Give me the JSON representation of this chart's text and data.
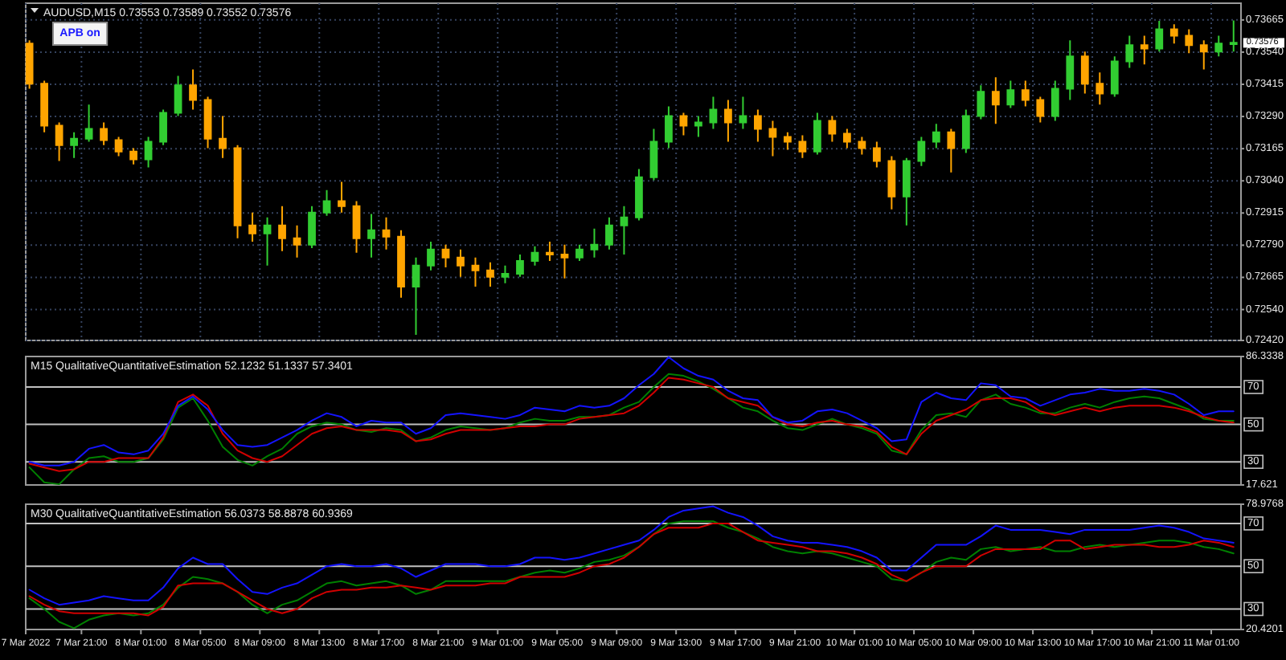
{
  "chart_data": [
    {
      "type": "candlestick",
      "title": "AUDUSD,M15 0.73553 0.73589 0.73552 0.73576",
      "annotations": [
        "APB on",
        {
          "text": "0.73576",
          "x": "2022-03-11T02:30",
          "y": 0.73576
        }
      ],
      "x": [
        "2022-03-07T17:30",
        "2022-03-07T18:30",
        "2022-03-07T19:30",
        "2022-03-07T20:30",
        "2022-03-07T21:30",
        "2022-03-07T22:30",
        "2022-03-07T23:30",
        "2022-03-08T00:30",
        "2022-03-08T01:30",
        "2022-03-08T02:30",
        "2022-03-08T03:30",
        "2022-03-08T04:30",
        "2022-03-08T05:30",
        "2022-03-08T06:30",
        "2022-03-08T07:30",
        "2022-03-08T08:30",
        "2022-03-08T09:30",
        "2022-03-08T10:30",
        "2022-03-08T11:30",
        "2022-03-08T12:30",
        "2022-03-08T13:30",
        "2022-03-08T14:30",
        "2022-03-08T15:30",
        "2022-03-08T16:30",
        "2022-03-08T17:30",
        "2022-03-08T18:30",
        "2022-03-08T19:30",
        "2022-03-08T20:30",
        "2022-03-08T21:30",
        "2022-03-08T22:30",
        "2022-03-08T23:30",
        "2022-03-09T00:30",
        "2022-03-09T01:30",
        "2022-03-09T02:30",
        "2022-03-09T03:30",
        "2022-03-09T04:30",
        "2022-03-09T05:30",
        "2022-03-09T06:30",
        "2022-03-09T07:30",
        "2022-03-09T08:30",
        "2022-03-09T09:30",
        "2022-03-09T10:30",
        "2022-03-09T11:30",
        "2022-03-09T12:30",
        "2022-03-09T13:30",
        "2022-03-09T14:30",
        "2022-03-09T15:30",
        "2022-03-09T16:30",
        "2022-03-09T17:30",
        "2022-03-09T18:30",
        "2022-03-09T19:30",
        "2022-03-09T20:30",
        "2022-03-09T21:30",
        "2022-03-09T22:30",
        "2022-03-09T23:30",
        "2022-03-10T00:30",
        "2022-03-10T01:30",
        "2022-03-10T02:30",
        "2022-03-10T03:30",
        "2022-03-10T04:30",
        "2022-03-10T05:30",
        "2022-03-10T06:30",
        "2022-03-10T07:30",
        "2022-03-10T08:30",
        "2022-03-10T09:30",
        "2022-03-10T10:30",
        "2022-03-10T11:30",
        "2022-03-10T12:30",
        "2022-03-10T13:30",
        "2022-03-10T14:30",
        "2022-03-10T15:30",
        "2022-03-10T16:30",
        "2022-03-10T17:30",
        "2022-03-10T18:30",
        "2022-03-10T19:30",
        "2022-03-10T20:30",
        "2022-03-10T21:30",
        "2022-03-10T22:30",
        "2022-03-10T23:30",
        "2022-03-11T00:30",
        "2022-03-11T01:30",
        "2022-03-11T02:30"
      ],
      "ohlc": [
        [
          0.73573,
          0.73586,
          0.73398,
          0.73417
        ],
        [
          0.73417,
          0.73429,
          0.73229,
          0.73254
        ],
        [
          0.73254,
          0.73267,
          0.73117,
          0.73179
        ],
        [
          0.73179,
          0.73229,
          0.73129,
          0.73204
        ],
        [
          0.73204,
          0.73336,
          0.73192,
          0.73242
        ],
        [
          0.73242,
          0.73267,
          0.73179,
          0.73198
        ],
        [
          0.73198,
          0.73211,
          0.73136,
          0.73154
        ],
        [
          0.73154,
          0.73167,
          0.73104,
          0.73123
        ],
        [
          0.73123,
          0.73211,
          0.73092,
          0.73192
        ],
        [
          0.73192,
          0.73317,
          0.73179,
          0.73304
        ],
        [
          0.73304,
          0.73448,
          0.73292,
          0.73411
        ],
        [
          0.73411,
          0.73473,
          0.73317,
          0.73354
        ],
        [
          0.73354,
          0.73367,
          0.73167,
          0.73204
        ],
        [
          0.73204,
          0.73292,
          0.73129,
          0.73167
        ],
        [
          0.73167,
          0.73179,
          0.72817,
          0.72867
        ],
        [
          0.72867,
          0.72917,
          0.72804,
          0.72836
        ],
        [
          0.72836,
          0.72898,
          0.72711,
          0.72867
        ],
        [
          0.72867,
          0.72942,
          0.72767,
          0.72817
        ],
        [
          0.72817,
          0.72867,
          0.72742,
          0.72792
        ],
        [
          0.72792,
          0.72942,
          0.72779,
          0.72917
        ],
        [
          0.72917,
          0.73004,
          0.72904,
          0.72961
        ],
        [
          0.72961,
          0.73036,
          0.72917,
          0.72942
        ],
        [
          0.72942,
          0.72961,
          0.72761,
          0.72817
        ],
        [
          0.72817,
          0.72911,
          0.72742,
          0.72848
        ],
        [
          0.72848,
          0.72898,
          0.72773,
          0.72823
        ],
        [
          0.72823,
          0.72848,
          0.72586,
          0.72629
        ],
        [
          0.72629,
          0.72742,
          0.72442,
          0.72711
        ],
        [
          0.72711,
          0.72804,
          0.72692,
          0.72773
        ],
        [
          0.72773,
          0.72792,
          0.72704,
          0.72742
        ],
        [
          0.72742,
          0.72773,
          0.72667,
          0.72711
        ],
        [
          0.72711,
          0.72742,
          0.72629,
          0.72692
        ],
        [
          0.72692,
          0.72723,
          0.72629,
          0.72667
        ],
        [
          0.72667,
          0.72711,
          0.72642,
          0.72679
        ],
        [
          0.72679,
          0.72754,
          0.72667,
          0.72729
        ],
        [
          0.72729,
          0.72786,
          0.72711,
          0.72761
        ],
        [
          0.72761,
          0.72804,
          0.72729,
          0.72754
        ],
        [
          0.72754,
          0.72792,
          0.72661,
          0.72742
        ],
        [
          0.72742,
          0.72792,
          0.72729,
          0.72773
        ],
        [
          0.72773,
          0.72854,
          0.72742,
          0.72792
        ],
        [
          0.72792,
          0.72898,
          0.72773,
          0.72867
        ],
        [
          0.72867,
          0.72942,
          0.72754,
          0.72898
        ],
        [
          0.72898,
          0.73086,
          0.72886,
          0.73054
        ],
        [
          0.73054,
          0.73242,
          0.73042,
          0.73192
        ],
        [
          0.73192,
          0.73329,
          0.73167,
          0.73292
        ],
        [
          0.73292,
          0.73304,
          0.73217,
          0.73254
        ],
        [
          0.73254,
          0.73292,
          0.73211,
          0.73267
        ],
        [
          0.73267,
          0.73367,
          0.73242,
          0.73317
        ],
        [
          0.73317,
          0.73354,
          0.73192,
          0.73267
        ],
        [
          0.73267,
          0.73367,
          0.73242,
          0.73292
        ],
        [
          0.73292,
          0.73317,
          0.73192,
          0.73242
        ],
        [
          0.73242,
          0.73273,
          0.73136,
          0.73211
        ],
        [
          0.73211,
          0.73229,
          0.73161,
          0.73192
        ],
        [
          0.73192,
          0.73217,
          0.73129,
          0.73154
        ],
        [
          0.73154,
          0.73304,
          0.73142,
          0.73273
        ],
        [
          0.73273,
          0.73292,
          0.73192,
          0.73223
        ],
        [
          0.73223,
          0.73242,
          0.73167,
          0.73192
        ],
        [
          0.73192,
          0.73211,
          0.73142,
          0.73167
        ],
        [
          0.73167,
          0.73192,
          0.73092,
          0.73117
        ],
        [
          0.73117,
          0.73136,
          0.72929,
          0.72979
        ],
        [
          0.72979,
          0.73129,
          0.72867,
          0.73117
        ],
        [
          0.73117,
          0.73211,
          0.73098,
          0.73192
        ],
        [
          0.73192,
          0.73261,
          0.73167,
          0.73229
        ],
        [
          0.73229,
          0.73242,
          0.73073,
          0.73167
        ],
        [
          0.73167,
          0.73317,
          0.73148,
          0.73292
        ],
        [
          0.73292,
          0.73411,
          0.73279,
          0.73386
        ],
        [
          0.73386,
          0.73442,
          0.73261,
          0.73336
        ],
        [
          0.73336,
          0.73429,
          0.73323,
          0.73392
        ],
        [
          0.73392,
          0.73429,
          0.73329,
          0.73354
        ],
        [
          0.73354,
          0.73367,
          0.73267,
          0.73292
        ],
        [
          0.73292,
          0.73429,
          0.73273,
          0.73398
        ],
        [
          0.73398,
          0.73586,
          0.73354,
          0.73523
        ],
        [
          0.73523,
          0.73542,
          0.73379,
          0.73417
        ],
        [
          0.73417,
          0.73461,
          0.73336,
          0.73379
        ],
        [
          0.73379,
          0.73523,
          0.73367,
          0.73504
        ],
        [
          0.73504,
          0.73604,
          0.73479,
          0.73567
        ],
        [
          0.73567,
          0.73604,
          0.73492,
          0.73554
        ],
        [
          0.73554,
          0.73661,
          0.73542,
          0.73629
        ],
        [
          0.73629,
          0.73648,
          0.73573,
          0.73604
        ],
        [
          0.73604,
          0.73629,
          0.73536,
          0.73567
        ],
        [
          0.73567,
          0.73586,
          0.73473,
          0.73542
        ],
        [
          0.73542,
          0.73604,
          0.73523,
          0.73573
        ],
        [
          0.73573,
          0.73663,
          0.73542,
          0.73576
        ]
      ],
      "colors": [
        "#ffa500",
        "#ffa500",
        "#ffa500",
        "#32cd32",
        "#32cd32",
        "#ffa500",
        "#ffa500",
        "#ffa500",
        "#32cd32",
        "#32cd32",
        "#32cd32",
        "#ffa500",
        "#ffa500",
        "#ffa500",
        "#ffa500",
        "#ffa500",
        "#32cd32",
        "#ffa500",
        "#ffa500",
        "#32cd32",
        "#32cd32",
        "#ffa500",
        "#ffa500",
        "#32cd32",
        "#ffa500",
        "#ffa500",
        "#32cd32",
        "#32cd32",
        "#ffa500",
        "#ffa500",
        "#ffa500",
        "#ffa500",
        "#32cd32",
        "#32cd32",
        "#32cd32",
        "#ffa500",
        "#ffa500",
        "#32cd32",
        "#32cd32",
        "#32cd32",
        "#32cd32",
        "#32cd32",
        "#32cd32",
        "#32cd32",
        "#ffa500",
        "#32cd32",
        "#32cd32",
        "#ffa500",
        "#32cd32",
        "#ffa500",
        "#ffa500",
        "#ffa500",
        "#ffa500",
        "#32cd32",
        "#ffa500",
        "#ffa500",
        "#ffa500",
        "#ffa500",
        "#ffa500",
        "#32cd32",
        "#32cd32",
        "#32cd32",
        "#ffa500",
        "#32cd32",
        "#32cd32",
        "#ffa500",
        "#32cd32",
        "#ffa500",
        "#ffa500",
        "#32cd32",
        "#32cd32",
        "#ffa500",
        "#ffa500",
        "#32cd32",
        "#32cd32",
        "#ffa500",
        "#32cd32",
        "#ffa500",
        "#ffa500",
        "#ffa500",
        "#32cd32",
        "#32cd32"
      ],
      "xlim": [
        "2022-03-07T17:15",
        "2022-03-11T03:00"
      ],
      "ylim": [
        0.7242,
        0.7373
      ],
      "yticks": [
        {
          "value": 0.7242,
          "label": "0.72420"
        },
        {
          "value": 0.7254,
          "label": "0.72540"
        },
        0.72665,
        {
          "value": 0.7279,
          "label": "0.72790"
        },
        0.72915,
        {
          "value": 0.7304,
          "label": "0.73040"
        },
        0.73165,
        {
          "value": 0.7329,
          "label": "0.73290"
        },
        0.73415,
        {
          "value": 0.7354,
          "label": "0.73540"
        },
        0.73665
      ],
      "xticks": [
        {
          "value": "2022-03-07T17:15",
          "label": null
        },
        {
          "value": "2022-03-07T21:00",
          "label": null
        },
        {
          "value": "2022-03-08T01:00",
          "label": null
        },
        {
          "value": "2022-03-08T05:00",
          "label": null
        },
        {
          "value": "2022-03-08T09:00",
          "label": null
        },
        {
          "value": "2022-03-08T13:00",
          "label": null
        },
        {
          "value": "2022-03-08T17:00",
          "label": null
        },
        {
          "value": "2022-03-08T21:00",
          "label": null
        },
        {
          "value": "2022-03-09T01:00",
          "label": null
        },
        {
          "value": "2022-03-09T05:00",
          "label": null
        },
        {
          "value": "2022-03-09T09:00",
          "label": null
        },
        {
          "value": "2022-03-09T13:00",
          "label": null
        },
        {
          "value": "2022-03-09T17:00",
          "label": null
        },
        {
          "value": "2022-03-09T21:00",
          "label": null
        },
        {
          "value": "2022-03-10T01:00",
          "label": null
        },
        {
          "value": "2022-03-10T05:00",
          "label": null
        },
        {
          "value": "2022-03-10T09:00",
          "label": null
        },
        {
          "value": "2022-03-10T13:00",
          "label": null
        },
        {
          "value": "2022-03-10T17:00",
          "label": null
        },
        {
          "value": "2022-03-10T21:00",
          "label": null
        },
        {
          "value": "2022-03-11T01:00",
          "label": null
        }
      ],
      "tick_labels": "y",
      "grid": true
    },
    {
      "type": "line",
      "title": "M15 QualitativeQuantitativeEstimation 52.1232 51.1337 57.3401",
      "x": [
        "2022-03-07T17:30",
        "2022-03-07T18:30",
        "2022-03-07T19:30",
        "2022-03-07T20:30",
        "2022-03-07T21:30",
        "2022-03-07T22:30",
        "2022-03-07T23:30",
        "2022-03-08T00:30",
        "2022-03-08T01:30",
        "2022-03-08T02:30",
        "2022-03-08T03:30",
        "2022-03-08T04:30",
        "2022-03-08T05:30",
        "2022-03-08T06:30",
        "2022-03-08T07:30",
        "2022-03-08T08:30",
        "2022-03-08T09:30",
        "2022-03-08T10:30",
        "2022-03-08T11:30",
        "2022-03-08T12:30",
        "2022-03-08T13:30",
        "2022-03-08T14:30",
        "2022-03-08T15:30",
        "2022-03-08T16:30",
        "2022-03-08T17:30",
        "2022-03-08T18:30",
        "2022-03-08T19:30",
        "2022-03-08T20:30",
        "2022-03-08T21:30",
        "2022-03-08T22:30",
        "2022-03-08T23:30",
        "2022-03-09T00:30",
        "2022-03-09T01:30",
        "2022-03-09T02:30",
        "2022-03-09T03:30",
        "2022-03-09T04:30",
        "2022-03-09T05:30",
        "2022-03-09T06:30",
        "2022-03-09T07:30",
        "2022-03-09T08:30",
        "2022-03-09T09:30",
        "2022-03-09T10:30",
        "2022-03-09T11:30",
        "2022-03-09T12:30",
        "2022-03-09T13:30",
        "2022-03-09T14:30",
        "2022-03-09T15:30",
        "2022-03-09T16:30",
        "2022-03-09T17:30",
        "2022-03-09T18:30",
        "2022-03-09T19:30",
        "2022-03-09T20:30",
        "2022-03-09T21:30",
        "2022-03-09T22:30",
        "2022-03-09T23:30",
        "2022-03-10T00:30",
        "2022-03-10T01:30",
        "2022-03-10T02:30",
        "2022-03-10T03:30",
        "2022-03-10T04:30",
        "2022-03-10T05:30",
        "2022-03-10T06:30",
        "2022-03-10T07:30",
        "2022-03-10T08:30",
        "2022-03-10T09:30",
        "2022-03-10T10:30",
        "2022-03-10T11:30",
        "2022-03-10T12:30",
        "2022-03-10T13:30",
        "2022-03-10T14:30",
        "2022-03-10T15:30",
        "2022-03-10T16:30",
        "2022-03-10T17:30",
        "2022-03-10T18:30",
        "2022-03-10T19:30",
        "2022-03-10T20:30",
        "2022-03-10T21:30",
        "2022-03-10T22:30",
        "2022-03-10T23:30",
        "2022-03-11T00:30",
        "2022-03-11T01:30",
        "2022-03-11T02:30"
      ],
      "series": [
        {
          "color": "#008000",
          "values": [
            27,
            19,
            18,
            26,
            32,
            33,
            30,
            30,
            32,
            42,
            59,
            64,
            52,
            38,
            31,
            28,
            33,
            37,
            45,
            49,
            51,
            50,
            47,
            46,
            48,
            47,
            41,
            43,
            47,
            49,
            48,
            47,
            48,
            51,
            53,
            52,
            52,
            54,
            54,
            55,
            59,
            62,
            70,
            77,
            76,
            73,
            69,
            64,
            59,
            57,
            52,
            48,
            47,
            50,
            53,
            50,
            48,
            45,
            36,
            34,
            47,
            55,
            56,
            54,
            63,
            66,
            61,
            59,
            56,
            56,
            59,
            61,
            59,
            62,
            64,
            65,
            64,
            61,
            58,
            53,
            52,
            52
          ]
        },
        {
          "color": "#d00000",
          "values": [
            29,
            27,
            25,
            26,
            30,
            30,
            32,
            32,
            32,
            43,
            62,
            66,
            60,
            45,
            36,
            32,
            30,
            33,
            39,
            45,
            48,
            49,
            47,
            47,
            47,
            46,
            41,
            42,
            45,
            47,
            47,
            47,
            48,
            49,
            49,
            50,
            50,
            53,
            54,
            55,
            56,
            60,
            67,
            75,
            74,
            72,
            70,
            64,
            62,
            60,
            54,
            50,
            49,
            51,
            52,
            50,
            49,
            46,
            38,
            34,
            45,
            52,
            55,
            58,
            63,
            64,
            64,
            62,
            57,
            55,
            57,
            59,
            57,
            59,
            60,
            60,
            60,
            59,
            57,
            54,
            52,
            51
          ]
        },
        {
          "color": "#1414ff",
          "values": [
            30,
            28,
            28,
            30,
            37,
            39,
            35,
            34,
            36,
            45,
            60,
            65,
            58,
            47,
            39,
            38,
            39,
            43,
            47,
            52,
            56,
            54,
            49,
            52,
            51,
            51,
            45,
            48,
            55,
            56,
            55,
            54,
            53,
            55,
            59,
            58,
            57,
            60,
            59,
            60,
            64,
            71,
            77,
            86,
            80,
            76,
            74,
            68,
            64,
            63,
            54,
            51,
            52,
            57,
            58,
            56,
            52,
            48,
            41,
            42,
            62,
            67,
            64,
            63,
            72,
            71,
            65,
            64,
            60,
            63,
            66,
            67,
            69,
            68,
            68,
            69,
            68,
            66,
            61,
            55,
            57,
            57
          ]
        }
      ],
      "xlim": [
        "2022-03-07T17:15",
        "2022-03-11T03:00"
      ],
      "ylim": [
        17.621,
        86.3338
      ],
      "yticks": [
        17.621,
        86.3338
      ],
      "tick_labels": "y",
      "ref_lines": [
        {
          "axis": "y",
          "value": 70,
          "label": "70",
          "color": "#c0c0c0"
        },
        {
          "axis": "y",
          "value": 50,
          "label": "50",
          "color": "#c0c0c0"
        },
        {
          "axis": "y",
          "value": 30,
          "label": "30",
          "color": "#c0c0c0"
        }
      ]
    },
    {
      "type": "line",
      "title": "M30 QualitativeQuantitativeEstimation 56.0373 58.8878 60.9369",
      "x": [
        "2022-03-07T17:30",
        "2022-03-07T18:30",
        "2022-03-07T19:30",
        "2022-03-07T20:30",
        "2022-03-07T21:30",
        "2022-03-07T22:30",
        "2022-03-07T23:30",
        "2022-03-08T00:30",
        "2022-03-08T01:30",
        "2022-03-08T02:30",
        "2022-03-08T03:30",
        "2022-03-08T04:30",
        "2022-03-08T05:30",
        "2022-03-08T06:30",
        "2022-03-08T07:30",
        "2022-03-08T08:30",
        "2022-03-08T09:30",
        "2022-03-08T10:30",
        "2022-03-08T11:30",
        "2022-03-08T12:30",
        "2022-03-08T13:30",
        "2022-03-08T14:30",
        "2022-03-08T15:30",
        "2022-03-08T16:30",
        "2022-03-08T17:30",
        "2022-03-08T18:30",
        "2022-03-08T19:30",
        "2022-03-08T20:30",
        "2022-03-08T21:30",
        "2022-03-08T22:30",
        "2022-03-08T23:30",
        "2022-03-09T00:30",
        "2022-03-09T01:30",
        "2022-03-09T02:30",
        "2022-03-09T03:30",
        "2022-03-09T04:30",
        "2022-03-09T05:30",
        "2022-03-09T06:30",
        "2022-03-09T07:30",
        "2022-03-09T08:30",
        "2022-03-09T09:30",
        "2022-03-09T10:30",
        "2022-03-09T11:30",
        "2022-03-09T12:30",
        "2022-03-09T13:30",
        "2022-03-09T14:30",
        "2022-03-09T15:30",
        "2022-03-09T16:30",
        "2022-03-09T17:30",
        "2022-03-09T18:30",
        "2022-03-09T19:30",
        "2022-03-09T20:30",
        "2022-03-09T21:30",
        "2022-03-09T22:30",
        "2022-03-09T23:30",
        "2022-03-10T00:30",
        "2022-03-10T01:30",
        "2022-03-10T02:30",
        "2022-03-10T03:30",
        "2022-03-10T04:30",
        "2022-03-10T05:30",
        "2022-03-10T06:30",
        "2022-03-10T07:30",
        "2022-03-10T08:30",
        "2022-03-10T09:30",
        "2022-03-10T10:30",
        "2022-03-10T11:30",
        "2022-03-10T12:30",
        "2022-03-10T13:30",
        "2022-03-10T14:30",
        "2022-03-10T15:30",
        "2022-03-10T16:30",
        "2022-03-10T17:30",
        "2022-03-10T18:30",
        "2022-03-10T19:30",
        "2022-03-10T20:30",
        "2022-03-10T21:30",
        "2022-03-10T22:30",
        "2022-03-10T23:30",
        "2022-03-11T00:30",
        "2022-03-11T01:30",
        "2022-03-11T02:30"
      ],
      "series": [
        {
          "color": "#008000",
          "values": [
            35,
            30,
            24,
            21,
            25,
            27,
            28,
            27,
            28,
            32,
            40,
            45,
            44,
            42,
            38,
            32,
            28,
            32,
            34,
            38,
            42,
            43,
            41,
            42,
            43,
            41,
            37,
            39,
            43,
            43,
            43,
            43,
            43,
            45,
            47,
            48,
            47,
            49,
            52,
            53,
            55,
            59,
            65,
            70,
            71,
            71,
            71,
            68,
            66,
            63,
            59,
            57,
            56,
            57,
            56,
            54,
            52,
            50,
            44,
            43,
            47,
            52,
            54,
            53,
            58,
            59,
            57,
            58,
            59,
            57,
            57,
            59,
            60,
            59,
            60,
            61,
            62,
            62,
            61,
            59,
            58,
            56
          ]
        },
        {
          "color": "#d00000",
          "values": [
            36,
            32,
            29,
            28,
            28,
            28,
            28,
            28,
            27,
            31,
            41,
            42,
            42,
            42,
            38,
            34,
            30,
            28,
            30,
            35,
            38,
            39,
            39,
            40,
            40,
            41,
            40,
            39,
            41,
            41,
            41,
            42,
            42,
            45,
            45,
            45,
            45,
            47,
            50,
            51,
            54,
            59,
            65,
            68,
            68,
            68,
            70,
            70,
            66,
            62,
            61,
            60,
            59,
            57,
            57,
            56,
            54,
            51,
            46,
            43,
            47,
            50,
            50,
            50,
            55,
            58,
            58,
            58,
            58,
            62,
            62,
            58,
            59,
            60,
            60,
            60,
            59,
            59,
            60,
            62,
            61,
            59
          ]
        },
        {
          "color": "#1414ff",
          "values": [
            39,
            35,
            32,
            33,
            34,
            36,
            35,
            34,
            34,
            40,
            49,
            54,
            51,
            51,
            44,
            38,
            37,
            40,
            42,
            46,
            50,
            51,
            50,
            50,
            51,
            49,
            45,
            48,
            51,
            51,
            51,
            50,
            50,
            51,
            54,
            54,
            53,
            54,
            56,
            58,
            60,
            62,
            67,
            73,
            76,
            77,
            78,
            75,
            73,
            69,
            64,
            62,
            61,
            61,
            60,
            59,
            57,
            54,
            48,
            48,
            54,
            60,
            60,
            60,
            64,
            69,
            67,
            67,
            67,
            66,
            65,
            67,
            67,
            67,
            67,
            68,
            69,
            68,
            66,
            63,
            62,
            61
          ]
        }
      ],
      "xlim": [
        "2022-03-07T17:15",
        "2022-03-11T03:00"
      ],
      "ylim": [
        20.4201,
        78.9768
      ],
      "yticks": [
        20.4201,
        78.9768
      ],
      "xticks": [
        {
          "value": "2022-03-07T17:15",
          "label": "7 Mar 2022"
        },
        {
          "value": "2022-03-07T21:00",
          "label": "7 Mar 21:00"
        },
        {
          "value": "2022-03-08T01:00",
          "label": "8 Mar 01:00"
        },
        {
          "value": "2022-03-08T05:00",
          "label": "8 Mar 05:00"
        },
        {
          "value": "2022-03-08T09:00",
          "label": "8 Mar 09:00"
        },
        {
          "value": "2022-03-08T13:00",
          "label": "8 Mar 13:00"
        },
        {
          "value": "2022-03-08T17:00",
          "label": "8 Mar 17:00"
        },
        {
          "value": "2022-03-08T21:00",
          "label": "8 Mar 21:00"
        },
        {
          "value": "2022-03-09T01:00",
          "label": "9 Mar 01:00"
        },
        {
          "value": "2022-03-09T05:00",
          "label": "9 Mar 05:00"
        },
        {
          "value": "2022-03-09T09:00",
          "label": "9 Mar 09:00"
        },
        {
          "value": "2022-03-09T13:00",
          "label": "9 Mar 13:00"
        },
        {
          "value": "2022-03-09T17:00",
          "label": "9 Mar 17:00"
        },
        {
          "value": "2022-03-09T21:00",
          "label": "9 Mar 21:00"
        },
        {
          "value": "2022-03-10T01:00",
          "label": "10 Mar 01:00"
        },
        {
          "value": "2022-03-10T05:00",
          "label": "10 Mar 05:00"
        },
        {
          "value": "2022-03-10T09:00",
          "label": "10 Mar 09:00"
        },
        {
          "value": "2022-03-10T13:00",
          "label": "10 Mar 13:00"
        },
        {
          "value": "2022-03-10T17:00",
          "label": "10 Mar 17:00"
        },
        {
          "value": "2022-03-10T21:00",
          "label": "10 Mar 21:00"
        },
        {
          "value": "2022-03-11T01:00",
          "label": "11 Mar 01:00"
        }
      ],
      "ref_lines": [
        {
          "axis": "y",
          "value": 70,
          "label": "70",
          "color": "#c0c0c0"
        },
        {
          "axis": "y",
          "value": 50,
          "label": "50",
          "color": "#c0c0c0"
        },
        {
          "axis": "y",
          "value": 30,
          "label": "30",
          "color": "#c0c0c0"
        }
      ]
    }
  ]
}
